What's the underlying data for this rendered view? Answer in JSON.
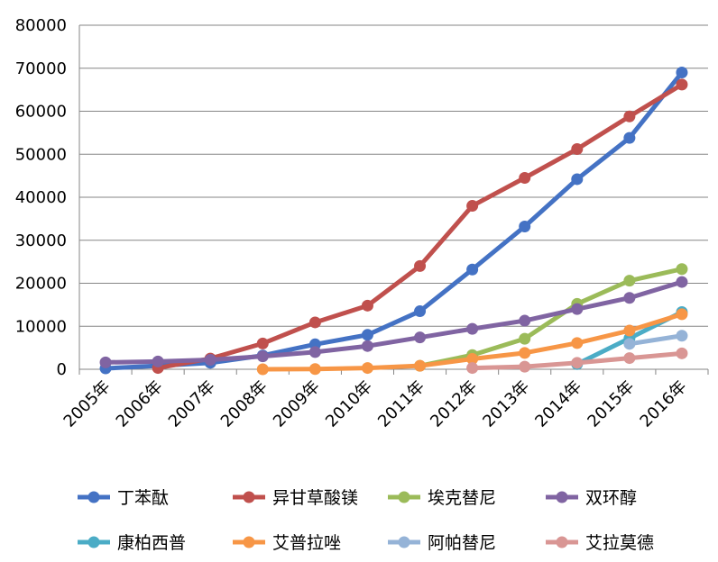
{
  "chart_data": {
    "type": "line",
    "categories": [
      "2005年",
      "2006年",
      "2007年",
      "2008年",
      "2009年",
      "2010年",
      "2011年",
      "2012年",
      "2013年",
      "2014年",
      "2015年",
      "2016年"
    ],
    "ylim": [
      0,
      80000
    ],
    "yticks": [
      0,
      10000,
      20000,
      30000,
      40000,
      50000,
      60000,
      70000,
      80000
    ],
    "grid": true,
    "legend_position": "bottom",
    "series": [
      {
        "name": "丁苯酞",
        "color": "#4472C4",
        "values": [
          200,
          800,
          1500,
          3200,
          5800,
          8000,
          13500,
          23200,
          33200,
          44200,
          53800,
          69000
        ]
      },
      {
        "name": "异甘草酸镁",
        "color": "#C0504D",
        "values": [
          null,
          300,
          2500,
          6000,
          10900,
          14800,
          24000,
          38000,
          44500,
          51200,
          58800,
          66200
        ]
      },
      {
        "name": "埃克替尼",
        "color": "#9BBB59",
        "values": [
          null,
          null,
          null,
          null,
          null,
          null,
          800,
          3300,
          7100,
          15200,
          20600,
          23300
        ]
      },
      {
        "name": "双环醇",
        "color": "#8064A2",
        "values": [
          1600,
          1800,
          2200,
          3000,
          4000,
          5400,
          7400,
          9400,
          11300,
          14000,
          16600,
          20300
        ]
      },
      {
        "name": "康柏西普",
        "color": "#4BACC6",
        "values": [
          null,
          null,
          null,
          null,
          null,
          null,
          null,
          null,
          null,
          1200,
          7200,
          13300
        ]
      },
      {
        "name": "艾普拉唑",
        "color": "#F79646",
        "values": [
          null,
          null,
          null,
          0,
          50,
          300,
          800,
          2400,
          3800,
          6100,
          9000,
          12800
        ]
      },
      {
        "name": "阿帕替尼",
        "color": "#95B3D7",
        "values": [
          null,
          null,
          null,
          null,
          null,
          null,
          null,
          null,
          null,
          null,
          5900,
          7800
        ]
      },
      {
        "name": "艾拉莫德",
        "color": "#D99694",
        "values": [
          null,
          null,
          null,
          null,
          null,
          null,
          null,
          300,
          600,
          1500,
          2600,
          3700
        ]
      }
    ]
  }
}
